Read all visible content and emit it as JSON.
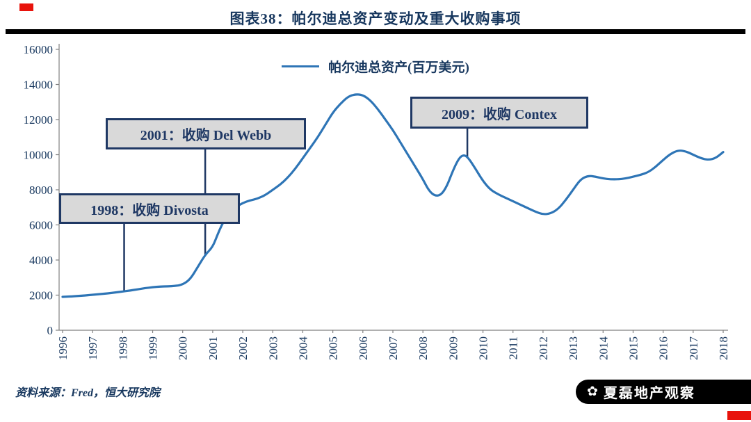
{
  "header": {
    "title": "图表38：帕尔迪总资产变动及重大收购事项"
  },
  "footer": {
    "source_note": "资料来源：Fred，恒大研究院",
    "logo_text": "夏磊地产观察",
    "logo_icon": "flower-icon",
    "logo_icon_glyph": "✿"
  },
  "colors": {
    "line": "#2E75B6",
    "navy": "#17375E",
    "annotation_border": "#1F3864",
    "annotation_fill": "#D9D9D9",
    "axis": "#808080",
    "divider": "#000000",
    "red_mark": "#E8130C"
  },
  "chart_data": {
    "type": "line",
    "title": "图表38：帕尔迪总资产变动及重大收购事项",
    "legend": "帕尔迪总资产(百万美元)",
    "legend_position": "top-center",
    "grid": false,
    "xlabel": "",
    "ylabel": "",
    "xlim": [
      1996,
      2018
    ],
    "ylim": [
      0,
      16000
    ],
    "yticks": [
      0,
      2000,
      4000,
      6000,
      8000,
      10000,
      12000,
      14000,
      16000
    ],
    "xticks": [
      1996,
      1997,
      1998,
      1999,
      2000,
      2001,
      2002,
      2003,
      2004,
      2005,
      2006,
      2007,
      2008,
      2009,
      2010,
      2011,
      2012,
      2013,
      2014,
      2015,
      2016,
      2017,
      2018
    ],
    "series": [
      {
        "name": "帕尔迪总资产(百万美元)",
        "x": [
          1996,
          1996.25,
          1996.5,
          1996.75,
          1997,
          1997.25,
          1997.5,
          1997.75,
          1998,
          1998.25,
          1998.5,
          1998.75,
          1999,
          1999.25,
          1999.5,
          1999.75,
          2000,
          2000.25,
          2000.5,
          2000.75,
          2001,
          2001.15,
          2001.3,
          2001.5,
          2001.75,
          2002,
          2002.25,
          2002.5,
          2002.75,
          2003,
          2003.25,
          2003.5,
          2003.75,
          2004,
          2004.25,
          2004.5,
          2004.75,
          2005,
          2005.25,
          2005.5,
          2005.75,
          2006,
          2006.25,
          2006.5,
          2006.75,
          2007,
          2007.25,
          2007.5,
          2007.75,
          2008,
          2008.2,
          2008.4,
          2008.6,
          2008.8,
          2009,
          2009.2,
          2009.35,
          2009.5,
          2009.75,
          2010,
          2010.25,
          2010.5,
          2010.75,
          2011,
          2011.25,
          2011.5,
          2011.75,
          2012,
          2012.25,
          2012.5,
          2012.75,
          2013,
          2013.25,
          2013.5,
          2013.75,
          2014,
          2014.25,
          2014.5,
          2014.75,
          2015,
          2015.25,
          2015.5,
          2015.75,
          2016,
          2016.25,
          2016.5,
          2016.75,
          2017,
          2017.25,
          2017.5,
          2017.75,
          2018
        ],
        "y": [
          1900,
          1920,
          1950,
          1980,
          2020,
          2060,
          2100,
          2150,
          2200,
          2260,
          2330,
          2400,
          2450,
          2490,
          2500,
          2520,
          2600,
          2900,
          3600,
          4300,
          4750,
          5400,
          6000,
          6600,
          7000,
          7250,
          7400,
          7500,
          7700,
          8000,
          8300,
          8700,
          9200,
          9800,
          10400,
          11000,
          11700,
          12400,
          12900,
          13300,
          13450,
          13400,
          13100,
          12600,
          12000,
          11400,
          10700,
          10000,
          9300,
          8600,
          7950,
          7650,
          7700,
          8200,
          9100,
          9800,
          10000,
          9850,
          9200,
          8500,
          8000,
          7750,
          7550,
          7350,
          7150,
          6950,
          6750,
          6600,
          6650,
          6900,
          7400,
          8000,
          8600,
          8800,
          8750,
          8650,
          8600,
          8600,
          8650,
          8750,
          8850,
          9000,
          9300,
          9700,
          10050,
          10250,
          10200,
          10000,
          9800,
          9700,
          9800,
          10150
        ]
      }
    ],
    "annotations": [
      {
        "label": "1998：收购 Divosta",
        "anchor_year": 1998.05,
        "anchor_value": 2210
      },
      {
        "label": "2001：收购 Del Webb",
        "anchor_year": 2000.75,
        "anchor_value": 4300
      },
      {
        "label": "2009：收购 Contex",
        "anchor_year": 2009.48,
        "anchor_value": 9870
      }
    ]
  }
}
